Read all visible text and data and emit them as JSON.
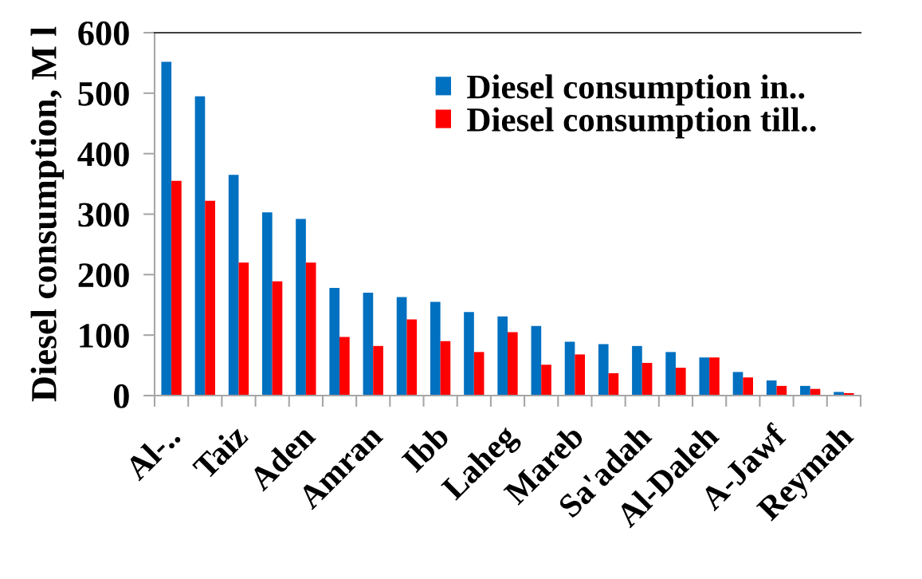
{
  "chart_data": {
    "type": "bar",
    "ylabel": "Diesel consumption, M l",
    "categories": [
      "Al-..",
      null,
      "Taiz",
      null,
      "Aden",
      null,
      "Amran",
      null,
      "Ibb",
      null,
      "Laheg",
      null,
      "Mareb",
      null,
      "Sa'adah",
      null,
      "Al-Daleh",
      null,
      "A-Jawf",
      null,
      "Reymah"
    ],
    "series": [
      {
        "name": "Diesel consumption in..",
        "color": "#0070c0",
        "values": [
          552,
          495,
          365,
          303,
          292,
          178,
          170,
          163,
          155,
          138,
          131,
          115,
          89,
          85,
          82,
          72,
          63,
          39,
          25,
          16,
          6
        ]
      },
      {
        "name": "Diesel consumption till..",
        "color": "#ff0000",
        "values": [
          355,
          322,
          220,
          189,
          220,
          97,
          82,
          126,
          90,
          72,
          105,
          51,
          68,
          37,
          54,
          46,
          63,
          30,
          16,
          11,
          4
        ]
      }
    ],
    "ylim": [
      0,
      600
    ],
    "yticks": [
      0,
      100,
      200,
      300,
      400,
      500,
      600
    ],
    "grid": false,
    "legend": "top right"
  }
}
